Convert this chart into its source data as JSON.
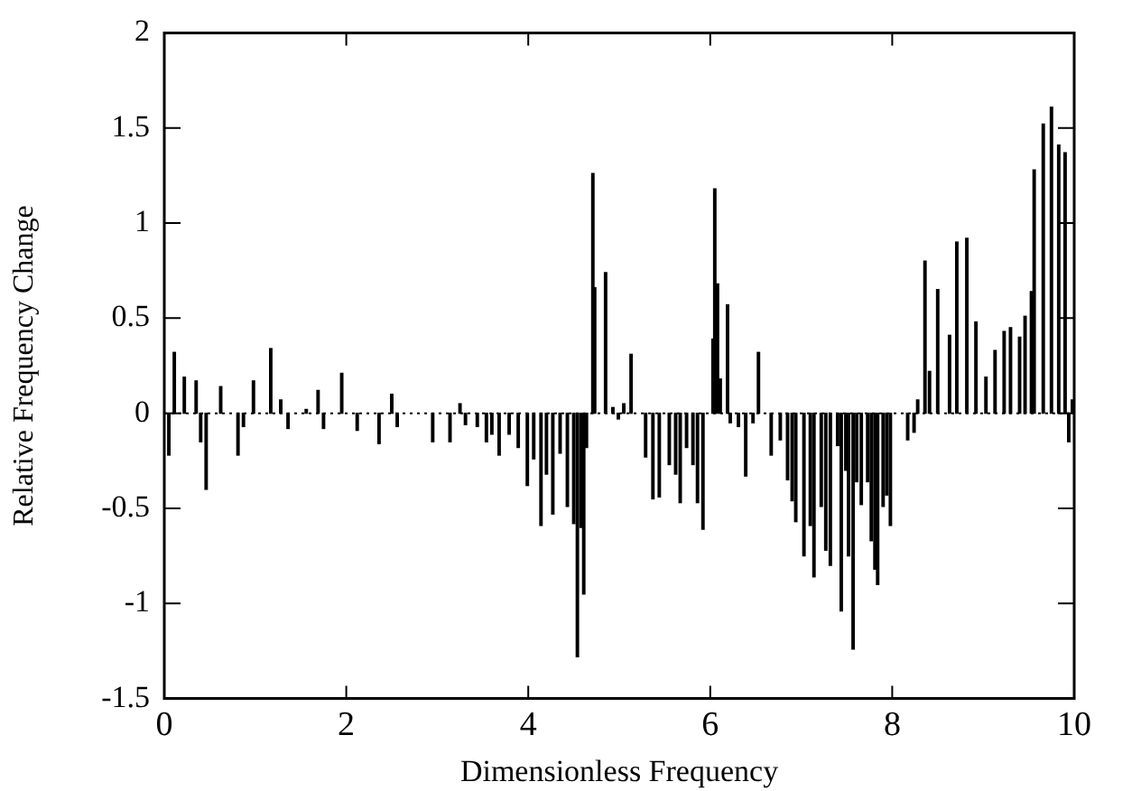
{
  "chart_data": {
    "type": "bar",
    "xlabel": "Dimensionless Frequency",
    "ylabel": "Relative Frequency Change",
    "color": "#000000",
    "x": [
      0.05,
      0.11,
      0.22,
      0.35,
      0.4,
      0.46,
      0.62,
      0.81,
      0.87,
      0.98,
      1.17,
      1.28,
      1.36,
      1.56,
      1.69,
      1.75,
      1.95,
      2.12,
      2.36,
      2.5,
      2.56,
      2.95,
      3.14,
      3.25,
      3.31,
      3.44,
      3.54,
      3.6,
      3.68,
      3.79,
      3.89,
      3.99,
      4.06,
      4.14,
      4.2,
      4.27,
      4.35,
      4.43,
      4.5,
      4.54,
      4.58,
      4.61,
      4.64,
      4.71,
      4.73,
      4.85,
      4.93,
      4.99,
      5.05,
      5.13,
      5.29,
      5.37,
      5.44,
      5.55,
      5.62,
      5.67,
      5.74,
      5.81,
      5.86,
      5.92,
      6.03,
      6.05,
      6.08,
      6.11,
      6.19,
      6.22,
      6.31,
      6.39,
      6.47,
      6.53,
      6.67,
      6.77,
      6.85,
      6.9,
      6.94,
      7.03,
      7.1,
      7.14,
      7.22,
      7.27,
      7.32,
      7.4,
      7.44,
      7.49,
      7.52,
      7.57,
      7.61,
      7.66,
      7.73,
      7.77,
      7.81,
      7.84,
      7.9,
      7.94,
      7.98,
      8.17,
      8.24,
      8.28,
      8.36,
      8.41,
      8.5,
      8.63,
      8.71,
      8.82,
      8.92,
      9.03,
      9.13,
      9.23,
      9.3,
      9.4,
      9.46,
      9.53,
      9.56,
      9.66,
      9.75,
      9.83,
      9.9,
      9.94,
      9.98
    ],
    "values": [
      -0.22,
      0.32,
      0.19,
      0.17,
      -0.15,
      -0.4,
      0.14,
      -0.22,
      -0.07,
      0.17,
      0.34,
      0.07,
      -0.08,
      0.02,
      0.12,
      -0.08,
      0.21,
      -0.09,
      -0.16,
      0.1,
      -0.07,
      -0.15,
      -0.15,
      0.05,
      -0.06,
      -0.07,
      -0.15,
      -0.11,
      -0.22,
      -0.11,
      -0.18,
      -0.38,
      -0.24,
      -0.59,
      -0.32,
      -0.53,
      -0.21,
      -0.49,
      -0.58,
      -1.28,
      -0.6,
      -0.95,
      -0.18,
      1.26,
      0.66,
      0.74,
      0.03,
      -0.03,
      0.05,
      0.31,
      -0.23,
      -0.45,
      -0.44,
      -0.27,
      -0.32,
      -0.47,
      -0.18,
      -0.27,
      -0.47,
      -0.61,
      0.39,
      1.18,
      0.68,
      0.18,
      0.57,
      -0.05,
      -0.07,
      -0.33,
      -0.05,
      0.32,
      -0.22,
      -0.14,
      -0.35,
      -0.46,
      -0.57,
      -0.75,
      -0.59,
      -0.86,
      -0.49,
      -0.72,
      -0.8,
      -0.17,
      -1.04,
      -0.3,
      -0.75,
      -1.24,
      -0.36,
      -0.48,
      -0.36,
      -0.67,
      -0.82,
      -0.9,
      -0.49,
      -0.43,
      -0.59,
      -0.14,
      -0.1,
      0.07,
      0.8,
      0.22,
      0.65,
      0.41,
      0.9,
      0.92,
      0.48,
      0.19,
      0.33,
      0.43,
      0.45,
      0.4,
      0.51,
      0.64,
      1.28,
      1.52,
      1.61,
      1.41,
      1.37,
      -0.15,
      0.07
    ],
    "xlim": [
      0,
      10
    ],
    "xticks": [
      0,
      2,
      4,
      6,
      8,
      10
    ],
    "ylim": [
      -1.5,
      2
    ],
    "yticks": [
      -1.5,
      -1,
      -0.5,
      0,
      0.5,
      1,
      1.5,
      2
    ],
    "ref_lines": [
      {
        "axis": "y",
        "value": 0,
        "line_style": "dotted",
        "color": "#000000"
      }
    ],
    "grid": false
  }
}
